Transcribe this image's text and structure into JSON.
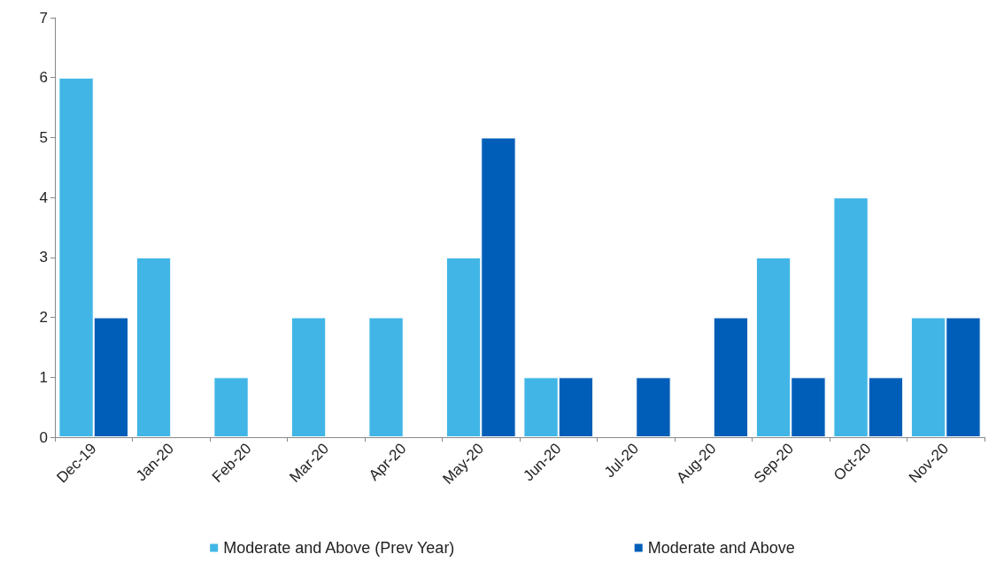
{
  "chart_data": {
    "type": "bar",
    "categories": [
      "Dec-19",
      "Jan-20",
      "Feb-20",
      "Mar-20",
      "Apr-20",
      "May-20",
      "Jun-20",
      "Jul-20",
      "Aug-20",
      "Sep-20",
      "Oct-20",
      "Nov-20"
    ],
    "series": [
      {
        "name": "Moderate and Above (Prev Year)",
        "color": "#41b6e6",
        "values": [
          6,
          3,
          1,
          2,
          2,
          3,
          1,
          0,
          0,
          3,
          4,
          2
        ]
      },
      {
        "name": "Moderate and Above",
        "color": "#005eb8",
        "values": [
          2,
          0,
          0,
          0,
          0,
          5,
          1,
          1,
          2,
          1,
          1,
          2
        ]
      }
    ],
    "ylim": [
      0,
      7
    ],
    "yticks": [
      0,
      1,
      2,
      3,
      4,
      5,
      6,
      7
    ],
    "grid": false,
    "legend": "bottom"
  }
}
